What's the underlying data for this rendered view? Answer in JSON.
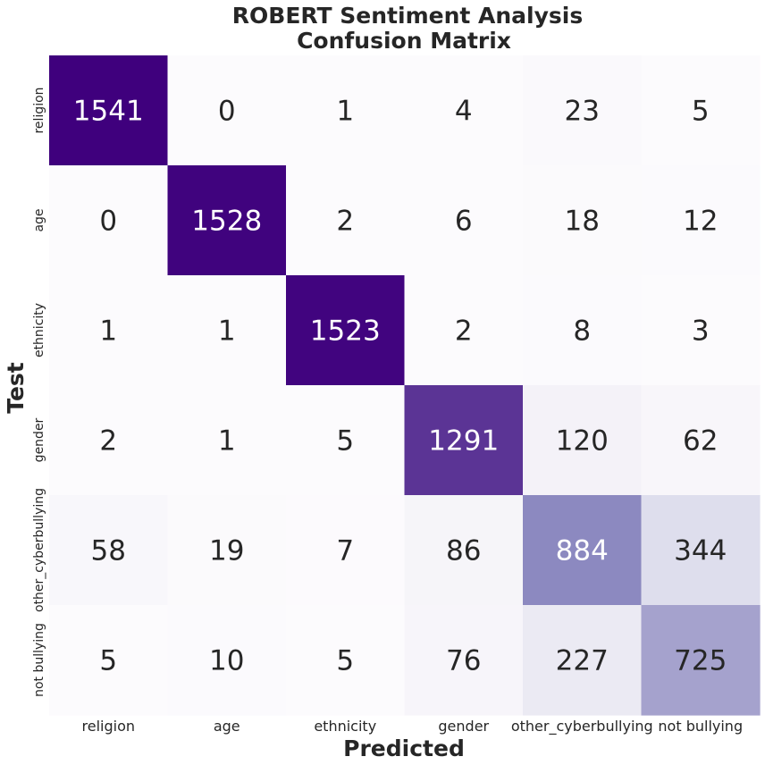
{
  "chart_data": {
    "type": "heatmap",
    "title_lines": [
      "ROBERT Sentiment Analysis",
      "Confusion Matrix"
    ],
    "xlabel": "Predicted",
    "ylabel": "Test",
    "x_categories": [
      "religion",
      "age",
      "ethnicity",
      "gender",
      "other_cyberbullying",
      "not bullying"
    ],
    "y_categories": [
      "religion",
      "age",
      "ethnicity",
      "gender",
      "other_cyberbullying",
      "not bullying"
    ],
    "values": [
      [
        1541,
        0,
        1,
        4,
        23,
        5
      ],
      [
        0,
        1528,
        2,
        6,
        18,
        12
      ],
      [
        1,
        1,
        1523,
        2,
        8,
        3
      ],
      [
        2,
        1,
        5,
        1291,
        120,
        62
      ],
      [
        58,
        19,
        7,
        86,
        884,
        344
      ],
      [
        5,
        10,
        5,
        76,
        227,
        725
      ]
    ],
    "colormap": "Purples",
    "color_range": [
      0,
      1541
    ],
    "colorbar": false,
    "grid": false
  }
}
